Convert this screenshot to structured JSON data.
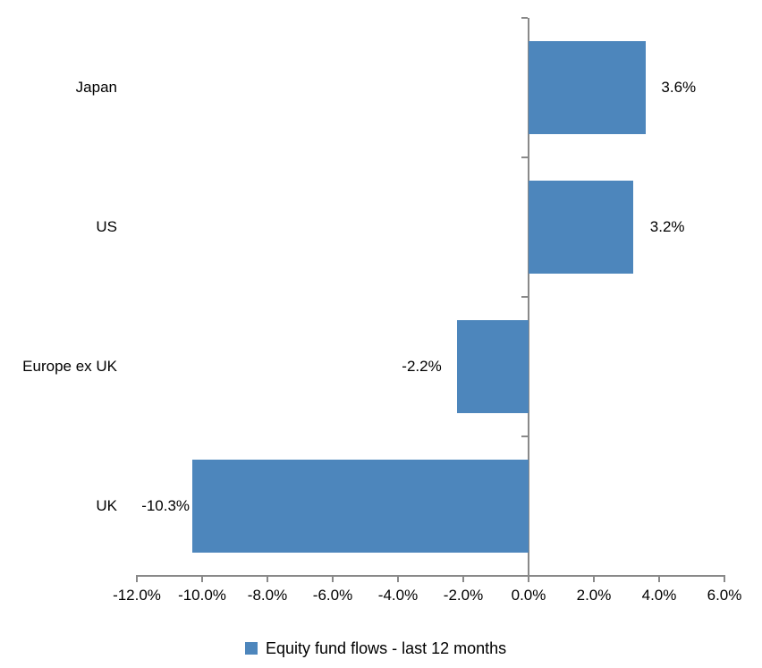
{
  "chart_data": {
    "type": "bar",
    "orientation": "horizontal",
    "title": "",
    "xlabel": "",
    "ylabel": "",
    "categories": [
      "Japan",
      "US",
      "Europe ex UK",
      "UK"
    ],
    "series": [
      {
        "name": "Equity fund flows - last 12 months",
        "values": [
          3.6,
          3.2,
          -2.2,
          -10.3
        ],
        "value_labels": [
          "3.6%",
          "3.2%",
          "-2.2%",
          "-10.3%"
        ]
      }
    ],
    "xlim": [
      -12,
      6
    ],
    "x_tick_values": [
      -12,
      -10,
      -8,
      -6,
      -4,
      -2,
      0,
      2,
      4,
      6
    ],
    "x_tick_labels": [
      "-12.0%",
      "-10.0%",
      "-8.0%",
      "-6.0%",
      "-4.0%",
      "-2.0%",
      "0.0%",
      "2.0%",
      "4.0%",
      "6.0%"
    ],
    "grid": false,
    "legend_position": "bottom",
    "legend": [
      {
        "label": "Equity fund flows - last 12 months",
        "color": "#4D86BC"
      }
    ],
    "colors": {
      "bar": "#4D86BC",
      "axis": "#898989",
      "text": "#000000",
      "background": "#ffffff"
    }
  }
}
